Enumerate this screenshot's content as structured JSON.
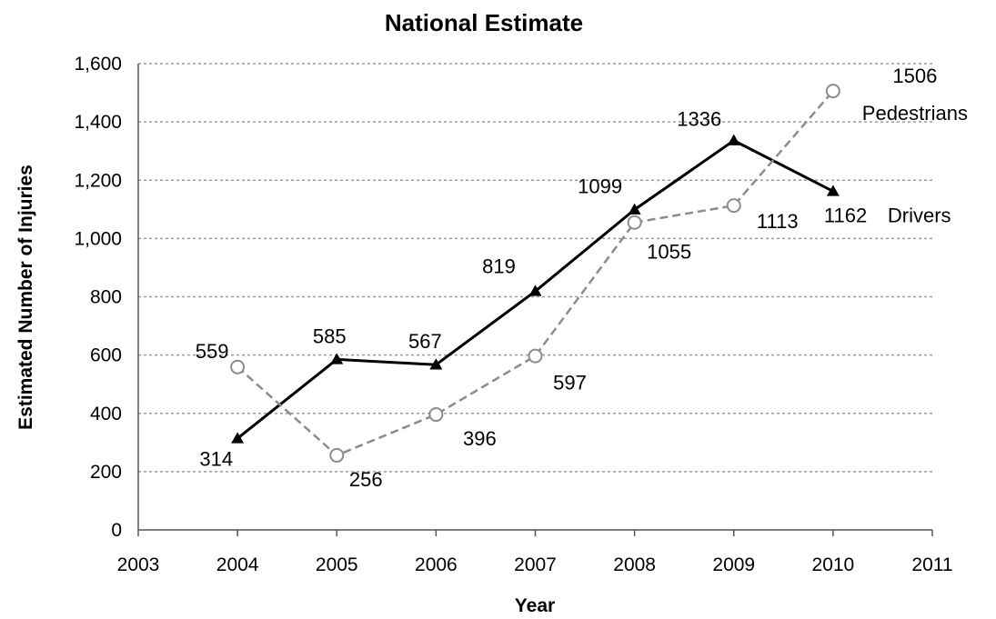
{
  "chart_data": {
    "type": "line",
    "title": "National Estimate",
    "xlabel": "Year",
    "ylabel": "Estimated Number of Injuries",
    "xlim": [
      2003,
      2011
    ],
    "ylim": [
      0,
      1600
    ],
    "x_ticks": [
      "2003",
      "2004",
      "2005",
      "2006",
      "2007",
      "2008",
      "2009",
      "2010",
      "2011"
    ],
    "y_ticks": [
      "0",
      "200",
      "400",
      "600",
      "800",
      "1,000",
      "1,200",
      "1,400",
      "1,600"
    ],
    "grid": "horizontal dashed",
    "x": [
      2004,
      2005,
      2006,
      2007,
      2008,
      2009,
      2010
    ],
    "series": [
      {
        "name": "Drivers",
        "values": [
          314,
          585,
          567,
          819,
          1099,
          1336,
          1162
        ],
        "data_labels": [
          "314",
          "585",
          "567",
          "819",
          "1099",
          "1336",
          "1162"
        ],
        "end_label": "Drivers",
        "line": "solid",
        "marker": "filled-triangle",
        "color": "#000000"
      },
      {
        "name": "Pedestrians",
        "values": [
          559,
          256,
          396,
          597,
          1055,
          1113,
          1506
        ],
        "data_labels": [
          "559",
          "256",
          "396",
          "597",
          "1055",
          "1113",
          "1506"
        ],
        "end_label": "Pedestrians",
        "line": "dashed",
        "marker": "open-circle",
        "color": "#8c8c8c"
      }
    ]
  }
}
